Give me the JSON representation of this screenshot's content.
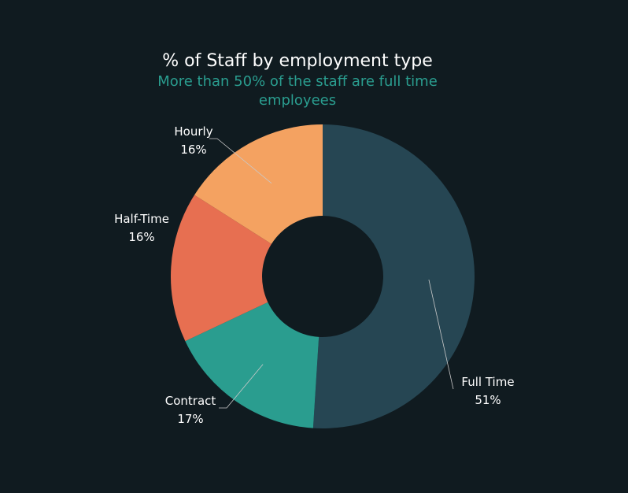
{
  "chart_data": {
    "type": "pie",
    "title": "% of Staff by employment type",
    "subtitle_lines": [
      "More than 50% of the staff are full time",
      "employees"
    ],
    "slices": [
      {
        "name": "Full Time",
        "value": 51,
        "label": "51%",
        "color": "#264653"
      },
      {
        "name": "Contract",
        "value": 17,
        "label": "17%",
        "color": "#2a9d8f"
      },
      {
        "name": "Half-Time",
        "value": 16,
        "label": "16%",
        "color": "#e76f51"
      },
      {
        "name": "Hourly",
        "value": 16,
        "label": "16%",
        "color": "#f4a261"
      }
    ],
    "donut": true,
    "background": "#101b20",
    "title_color": "#ffffff",
    "subtitle_color": "#2a9d8f"
  }
}
